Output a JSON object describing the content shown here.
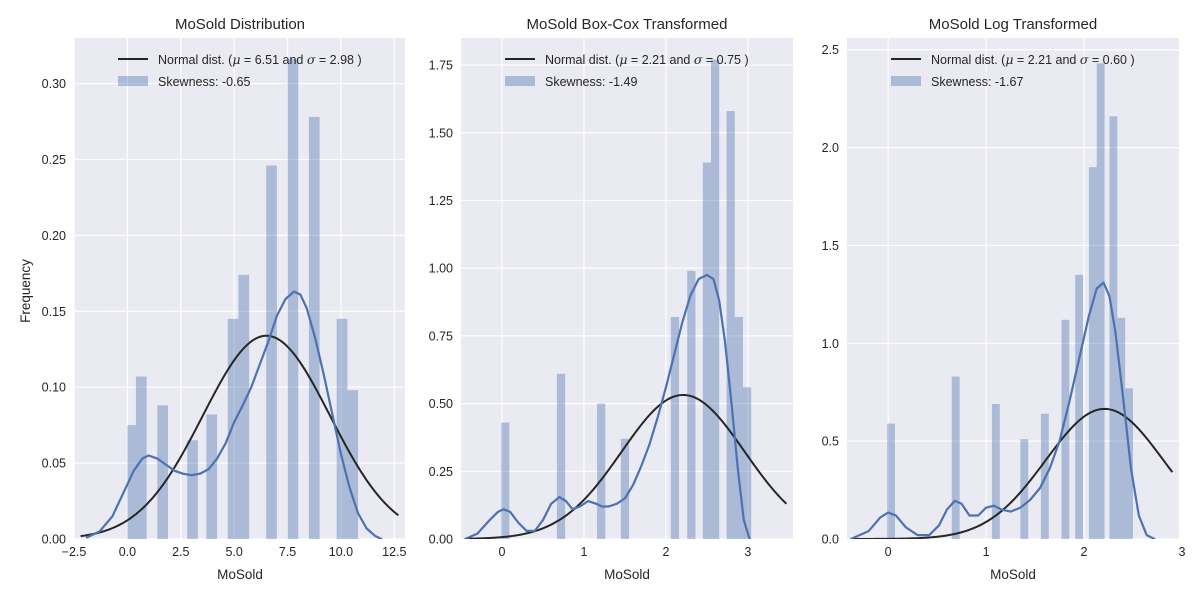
{
  "chart_data": [
    {
      "type": "bar",
      "title": "MoSold Distribution",
      "xlabel": "MoSold",
      "ylabel": "Frequency",
      "xlim": [
        -2.5,
        13.0
      ],
      "ylim": [
        0,
        0.33
      ],
      "xticks": [
        -2.5,
        0.0,
        2.5,
        5.0,
        7.5,
        10.0,
        12.5
      ],
      "xtick_labels": [
        "−2.5",
        "0.0",
        "2.5",
        "5.0",
        "7.5",
        "10.0",
        "12.5"
      ],
      "yticks": [
        0.0,
        0.05,
        0.1,
        0.15,
        0.2,
        0.25,
        0.3
      ],
      "ytick_labels": [
        "0.00",
        "0.05",
        "0.10",
        "0.15",
        "0.20",
        "0.25",
        "0.30"
      ],
      "legend": {
        "placement": "top-right",
        "entries": [
          "Normal dist. ($\\mu=$ 6.51 and $\\sigma=$ 2.98 )",
          "Skewness: -0.65"
        ]
      },
      "normal_mu": 6.51,
      "normal_sigma": 2.98,
      "bins": [
        {
          "x0": 0.0,
          "x1": 0.4,
          "value": 0.075
        },
        {
          "x0": 0.4,
          "x1": 0.9,
          "value": 0.107
        },
        {
          "x0": 1.4,
          "x1": 1.9,
          "value": 0.088
        },
        {
          "x0": 2.8,
          "x1": 3.3,
          "value": 0.065
        },
        {
          "x0": 3.7,
          "x1": 4.2,
          "value": 0.082
        },
        {
          "x0": 4.7,
          "x1": 5.2,
          "value": 0.145
        },
        {
          "x0": 5.2,
          "x1": 5.7,
          "value": 0.174
        },
        {
          "x0": 6.5,
          "x1": 7.0,
          "value": 0.246
        },
        {
          "x0": 7.5,
          "x1": 8.0,
          "value": 0.316
        },
        {
          "x0": 8.5,
          "x1": 9.0,
          "value": 0.278
        },
        {
          "x0": 9.8,
          "x1": 10.3,
          "value": 0.145
        },
        {
          "x0": 10.3,
          "x1": 10.8,
          "value": 0.098
        }
      ],
      "kde": {
        "x": [
          -1.9,
          -1.3,
          -0.7,
          -0.2,
          0.3,
          0.7,
          1.0,
          1.4,
          1.8,
          2.2,
          2.6,
          3.0,
          3.4,
          3.8,
          4.2,
          4.6,
          5.0,
          5.4,
          5.8,
          6.2,
          6.6,
          7.0,
          7.4,
          7.8,
          8.1,
          8.4,
          8.8,
          9.2,
          9.6,
          10.0,
          10.4,
          10.8,
          11.2,
          11.6,
          11.9
        ],
        "y": [
          0.001,
          0.005,
          0.015,
          0.03,
          0.045,
          0.053,
          0.055,
          0.053,
          0.049,
          0.045,
          0.043,
          0.042,
          0.043,
          0.046,
          0.053,
          0.063,
          0.077,
          0.088,
          0.1,
          0.115,
          0.13,
          0.147,
          0.158,
          0.163,
          0.161,
          0.152,
          0.132,
          0.108,
          0.082,
          0.056,
          0.034,
          0.017,
          0.007,
          0.002,
          0.0
        ]
      }
    },
    {
      "type": "bar",
      "title": "MoSold Box-Cox Transformed",
      "xlabel": "MoSold",
      "ylabel": "",
      "xlim": [
        -0.5,
        3.55
      ],
      "ylim": [
        0,
        1.85
      ],
      "xticks": [
        0,
        1,
        2,
        3
      ],
      "xtick_labels": [
        "0",
        "1",
        "2",
        "3"
      ],
      "yticks": [
        0.0,
        0.25,
        0.5,
        0.75,
        1.0,
        1.25,
        1.5,
        1.75
      ],
      "ytick_labels": [
        "0.00",
        "0.25",
        "0.50",
        "0.75",
        "1.00",
        "1.25",
        "1.50",
        "1.75"
      ],
      "legend": {
        "placement": "top-right",
        "entries": [
          "Normal dist. ($\\mu=$ 2.21 and $\\sigma=$ 0.75 )",
          "Skewness: -1.49"
        ]
      },
      "normal_mu": 2.21,
      "normal_sigma": 0.75,
      "bins": [
        {
          "x0": -0.01,
          "x1": 0.09,
          "value": 0.43
        },
        {
          "x0": 0.67,
          "x1": 0.77,
          "value": 0.61
        },
        {
          "x0": 1.16,
          "x1": 1.26,
          "value": 0.5
        },
        {
          "x0": 1.45,
          "x1": 1.55,
          "value": 0.37
        },
        {
          "x0": 2.06,
          "x1": 2.16,
          "value": 0.82
        },
        {
          "x0": 2.26,
          "x1": 2.36,
          "value": 0.99
        },
        {
          "x0": 2.45,
          "x1": 2.55,
          "value": 1.39
        },
        {
          "x0": 2.55,
          "x1": 2.65,
          "value": 1.77
        },
        {
          "x0": 2.74,
          "x1": 2.84,
          "value": 1.58
        },
        {
          "x0": 2.84,
          "x1": 2.94,
          "value": 0.82
        },
        {
          "x0": 2.94,
          "x1": 3.04,
          "value": 0.56
        }
      ],
      "kde": {
        "x": [
          -0.45,
          -0.3,
          -0.15,
          -0.05,
          0.02,
          0.1,
          0.2,
          0.3,
          0.4,
          0.5,
          0.6,
          0.7,
          0.78,
          0.86,
          0.95,
          1.05,
          1.15,
          1.22,
          1.3,
          1.4,
          1.5,
          1.6,
          1.7,
          1.8,
          1.9,
          2.0,
          2.1,
          2.2,
          2.3,
          2.4,
          2.5,
          2.58,
          2.65,
          2.72,
          2.8,
          2.88,
          2.95,
          3.02
        ],
        "y": [
          0.0,
          0.02,
          0.07,
          0.1,
          0.11,
          0.1,
          0.06,
          0.03,
          0.03,
          0.07,
          0.13,
          0.155,
          0.14,
          0.11,
          0.12,
          0.14,
          0.13,
          0.12,
          0.12,
          0.13,
          0.15,
          0.2,
          0.27,
          0.35,
          0.45,
          0.56,
          0.68,
          0.8,
          0.9,
          0.96,
          0.975,
          0.96,
          0.88,
          0.73,
          0.5,
          0.25,
          0.07,
          0.0
        ]
      }
    },
    {
      "type": "bar",
      "title": "MoSold Log Transformed",
      "xlabel": "MoSold",
      "ylabel": "",
      "xlim": [
        -0.42,
        2.97
      ],
      "ylim": [
        0,
        2.56
      ],
      "xticks": [
        0,
        1,
        2,
        3
      ],
      "xtick_labels": [
        "0",
        "1",
        "2",
        "3"
      ],
      "yticks": [
        0.0,
        0.5,
        1.0,
        1.5,
        2.0,
        2.5
      ],
      "ytick_labels": [
        "0.0",
        "0.5",
        "1.0",
        "1.5",
        "2.0",
        "2.5"
      ],
      "legend": {
        "placement": "top-right",
        "entries": [
          "Normal dist. ($\\mu=$ 2.21 and $\\sigma=$ 0.60 )",
          "Skewness: -1.67"
        ]
      },
      "normal_mu": 2.21,
      "normal_sigma": 0.6,
      "bins": [
        {
          "x0": -0.01,
          "x1": 0.07,
          "value": 0.59
        },
        {
          "x0": 0.65,
          "x1": 0.73,
          "value": 0.83
        },
        {
          "x0": 1.06,
          "x1": 1.14,
          "value": 0.69
        },
        {
          "x0": 1.35,
          "x1": 1.43,
          "value": 0.51
        },
        {
          "x0": 1.56,
          "x1": 1.64,
          "value": 0.64
        },
        {
          "x0": 1.77,
          "x1": 1.85,
          "value": 1.12
        },
        {
          "x0": 1.91,
          "x1": 1.99,
          "value": 1.35
        },
        {
          "x0": 2.05,
          "x1": 2.13,
          "value": 1.9
        },
        {
          "x0": 2.13,
          "x1": 2.21,
          "value": 2.43
        },
        {
          "x0": 2.26,
          "x1": 2.34,
          "value": 2.16
        },
        {
          "x0": 2.34,
          "x1": 2.42,
          "value": 1.13
        },
        {
          "x0": 2.42,
          "x1": 2.5,
          "value": 0.77
        }
      ],
      "kde": {
        "x": [
          -0.38,
          -0.2,
          -0.08,
          0.0,
          0.08,
          0.18,
          0.3,
          0.42,
          0.52,
          0.6,
          0.68,
          0.75,
          0.83,
          0.92,
          1.0,
          1.08,
          1.16,
          1.25,
          1.35,
          1.45,
          1.55,
          1.65,
          1.75,
          1.85,
          1.95,
          2.05,
          2.13,
          2.2,
          2.26,
          2.32,
          2.4,
          2.48,
          2.56,
          2.64,
          2.72
        ],
        "y": [
          0.0,
          0.04,
          0.11,
          0.135,
          0.12,
          0.06,
          0.02,
          0.02,
          0.07,
          0.15,
          0.195,
          0.18,
          0.12,
          0.12,
          0.16,
          0.17,
          0.15,
          0.14,
          0.16,
          0.2,
          0.26,
          0.36,
          0.5,
          0.7,
          0.92,
          1.14,
          1.28,
          1.31,
          1.24,
          1.06,
          0.72,
          0.36,
          0.12,
          0.02,
          0.0
        ]
      }
    }
  ],
  "colors": {
    "axes_background": "#EAEAF2",
    "grid": "#FFFFFF",
    "histogram": "#4C72B0",
    "kde": "#4C72B0",
    "normal_fit": "#262626",
    "text": "#262626"
  }
}
